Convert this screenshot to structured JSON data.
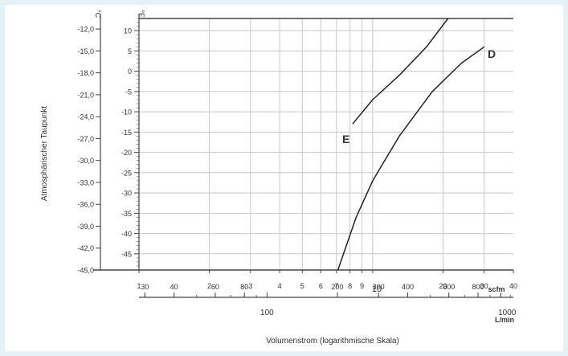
{
  "colors": {
    "background": "#e6f0f7",
    "panel": "#ffffff",
    "grid": "#c8c8c8",
    "axis": "#444444",
    "curve": "#222222",
    "text": "#333333"
  },
  "chart_data": {
    "type": "line",
    "title": "",
    "ylabel": "Atmosphärischer Taupunkt",
    "xlabel": "Volumenstrom (logarithmische Skala)",
    "x_scale": "log",
    "grid": true,
    "xlim": [
      1,
      40
    ],
    "y_axes": [
      {
        "unit": "°C",
        "ylim": [
          -45,
          -10.5
        ],
        "ticks": [
          "-12,0",
          "-15,0",
          "-18,0",
          "-21,0",
          "-24,0",
          "-27,0",
          "-30,0",
          "-33,0",
          "-36,0",
          "-39,0",
          "-42,0",
          "-45,0"
        ],
        "tick_values": [
          -12,
          -15,
          -18,
          -21,
          -24,
          -27,
          -30,
          -33,
          -36,
          -39,
          -42,
          -45
        ]
      },
      {
        "unit": "°F",
        "ylim": [
          -49,
          13
        ],
        "ticks": [
          "10",
          "5",
          "0",
          "-5",
          "-10",
          "-15",
          "-20",
          "-25",
          "-30",
          "-35",
          "-40",
          "-45"
        ],
        "tick_values": [
          10,
          5,
          0,
          -5,
          -10,
          -15,
          -20,
          -25,
          -30,
          -35,
          -40,
          -45
        ]
      }
    ],
    "x_axes": [
      {
        "unit": "scfm",
        "ticks": [
          "1",
          "2",
          "3",
          "4",
          "5",
          "6",
          "7",
          "8",
          "9",
          "10",
          "20",
          "30",
          "40"
        ],
        "tick_values": [
          1,
          2,
          3,
          4,
          5,
          6,
          7,
          8,
          9,
          10,
          20,
          30,
          40
        ]
      },
      {
        "unit": "L/min",
        "ticks": [
          "30",
          "40",
          "60",
          "80",
          "100",
          "200",
          "300",
          "400",
          "600",
          "800",
          "1000"
        ],
        "tick_values": [
          30,
          40,
          60,
          80,
          100,
          200,
          300,
          400,
          600,
          800,
          1000
        ]
      }
    ],
    "series": [
      {
        "name": "E",
        "points": [
          [
            8.2,
            -13
          ],
          [
            10,
            -7
          ],
          [
            13,
            -1
          ],
          [
            17,
            6
          ],
          [
            21,
            13
          ]
        ]
      },
      {
        "name": "D",
        "points": [
          [
            7.1,
            -49
          ],
          [
            8.5,
            -36
          ],
          [
            10,
            -27
          ],
          [
            13,
            -16
          ],
          [
            18,
            -5
          ],
          [
            24,
            2
          ],
          [
            30,
            6
          ]
        ]
      }
    ]
  }
}
